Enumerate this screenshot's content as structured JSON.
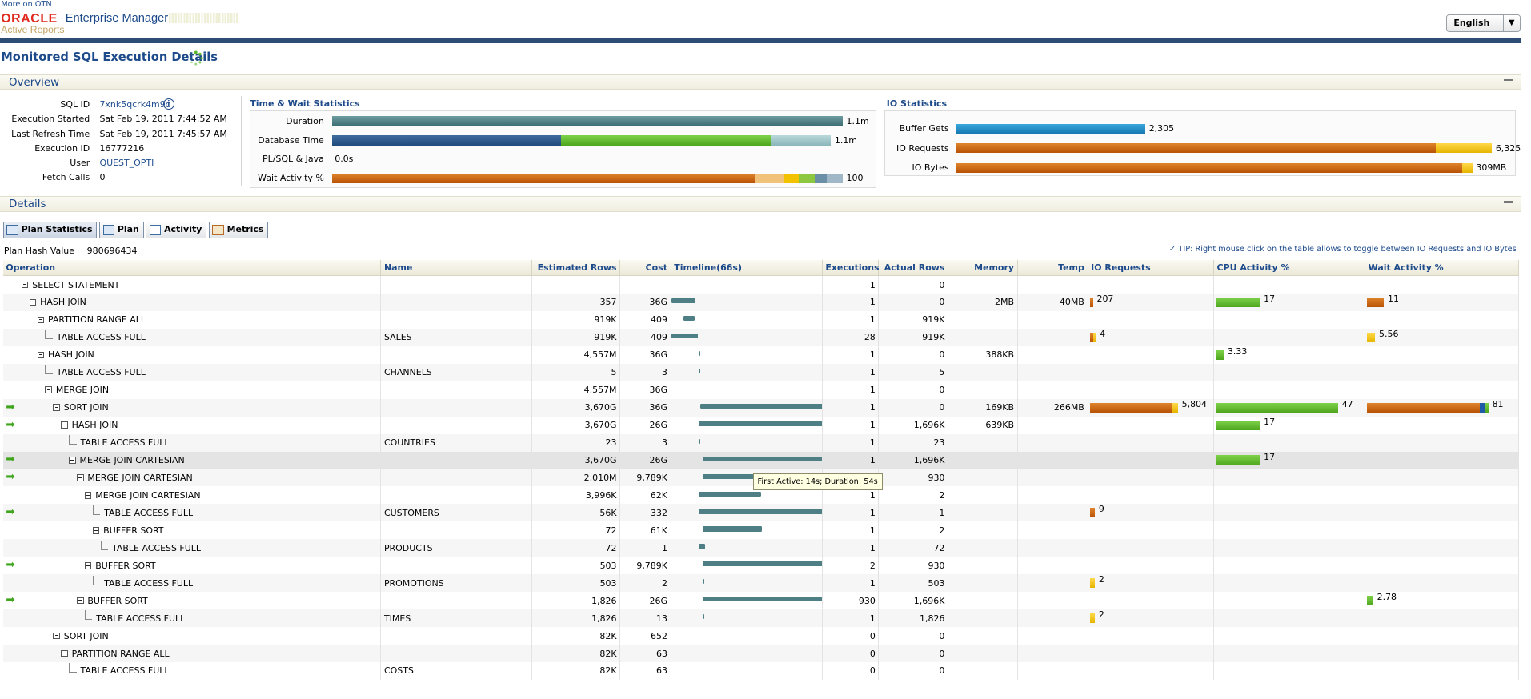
{
  "top": {
    "more_link": "More on OTN"
  },
  "brand": {
    "oracle": "ORACLE",
    "product": "Enterprise Manager",
    "subtitle": "Active Reports"
  },
  "language": {
    "selected": "English"
  },
  "page_title": "Monitored SQL Execution Details",
  "sections": {
    "overview": "Overview",
    "details": "Details"
  },
  "overview": {
    "fields": [
      {
        "label": "SQL ID",
        "value": "7xnk5qcrk4m9c"
      },
      {
        "label": "Execution Started",
        "value": "Sat Feb 19, 2011 7:44:52 AM"
      },
      {
        "label": "Last Refresh Time",
        "value": "Sat Feb 19, 2011 7:45:57 AM"
      },
      {
        "label": "Execution ID",
        "value": "16777216"
      },
      {
        "label": "User",
        "value": "QUEST_OPTI"
      },
      {
        "label": "Fetch Calls",
        "value": "0"
      }
    ]
  },
  "time_wait": {
    "title": "Time & Wait Statistics",
    "rows": [
      {
        "label": "Duration",
        "value": "1.1m",
        "fraction": 1.0
      },
      {
        "label": "Database Time",
        "value": "1.1m",
        "fraction": 1.0
      },
      {
        "label": "PL/SQL & Java",
        "value": "0.0s",
        "fraction": 0
      },
      {
        "label": "Wait Activity %",
        "value": "100",
        "fraction": 1.0
      }
    ]
  },
  "io_stats": {
    "title": "IO Statistics",
    "rows": [
      {
        "label": "Buffer Gets",
        "value": "2,305",
        "fraction": 0.35
      },
      {
        "label": "IO Requests",
        "value": "6,325",
        "fraction": 1.0
      },
      {
        "label": "IO Bytes",
        "value": "309MB",
        "fraction": 1.0
      }
    ]
  },
  "tabs": [
    {
      "label": "Plan Statistics",
      "icon": "table-icon"
    },
    {
      "label": "Plan",
      "icon": "tree-icon"
    },
    {
      "label": "Activity",
      "icon": "line-chart-icon"
    },
    {
      "label": "Metrics",
      "icon": "metrics-icon"
    }
  ],
  "plan_hash": {
    "label": "Plan Hash Value",
    "value": "980696434"
  },
  "tip": "TIP: Right mouse click on the table allows to toggle between IO Requests and IO Bytes",
  "columns": [
    "Operation",
    "Name",
    "Estimated Rows",
    "Cost",
    "Timeline(66s)",
    "Executions",
    "Actual Rows",
    "Memory",
    "Temp",
    "IO Requests",
    "CPU Activity %",
    "Wait Activity %"
  ],
  "rows": [
    {
      "op": "SELECT STATEMENT",
      "name": "",
      "est": "",
      "cost": "",
      "exec": "1",
      "act": "0",
      "mem": "",
      "temp": "",
      "io": "",
      "cpu": "",
      "wait": ""
    },
    {
      "op": "HASH JOIN",
      "name": "",
      "est": "357",
      "cost": "36G",
      "exec": "1",
      "act": "0",
      "mem": "2MB",
      "temp": "40MB",
      "io": "207",
      "cpu": "17",
      "wait": "11"
    },
    {
      "op": "PARTITION RANGE ALL",
      "name": "",
      "est": "919K",
      "cost": "409",
      "exec": "1",
      "act": "919K",
      "mem": "",
      "temp": "",
      "io": "",
      "cpu": "",
      "wait": ""
    },
    {
      "op": "TABLE ACCESS FULL",
      "name": "SALES",
      "est": "919K",
      "cost": "409",
      "exec": "28",
      "act": "919K",
      "mem": "",
      "temp": "",
      "io": "4",
      "cpu": "",
      "wait": "5.56"
    },
    {
      "op": "HASH JOIN",
      "name": "",
      "est": "4,557M",
      "cost": "36G",
      "exec": "1",
      "act": "0",
      "mem": "388KB",
      "temp": "",
      "io": "",
      "cpu": "3.33",
      "wait": ""
    },
    {
      "op": "TABLE ACCESS FULL",
      "name": "CHANNELS",
      "est": "5",
      "cost": "3",
      "exec": "1",
      "act": "5",
      "mem": "",
      "temp": "",
      "io": "",
      "cpu": "",
      "wait": ""
    },
    {
      "op": "MERGE JOIN",
      "name": "",
      "est": "4,557M",
      "cost": "36G",
      "exec": "1",
      "act": "0",
      "mem": "",
      "temp": "",
      "io": "",
      "cpu": "",
      "wait": ""
    },
    {
      "op": "SORT JOIN",
      "name": "",
      "est": "3,670G",
      "cost": "36G",
      "exec": "1",
      "act": "0",
      "mem": "169KB",
      "temp": "266MB",
      "io": "5,804",
      "cpu": "47",
      "wait": "81"
    },
    {
      "op": "HASH JOIN",
      "name": "",
      "est": "3,670G",
      "cost": "26G",
      "exec": "1",
      "act": "1,696K",
      "mem": "639KB",
      "temp": "",
      "io": "",
      "cpu": "17",
      "wait": ""
    },
    {
      "op": "TABLE ACCESS FULL",
      "name": "COUNTRIES",
      "est": "23",
      "cost": "3",
      "exec": "1",
      "act": "23",
      "mem": "",
      "temp": "",
      "io": "",
      "cpu": "",
      "wait": ""
    },
    {
      "op": "MERGE JOIN CARTESIAN",
      "name": "",
      "est": "3,670G",
      "cost": "26G",
      "exec": "1",
      "act": "1,696K",
      "mem": "",
      "temp": "",
      "io": "",
      "cpu": "17",
      "wait": ""
    },
    {
      "op": "MERGE JOIN CARTESIAN",
      "name": "",
      "est": "2,010M",
      "cost": "9,789K",
      "exec": "",
      "act": "930",
      "mem": "",
      "temp": "",
      "io": "",
      "cpu": "",
      "wait": ""
    },
    {
      "op": "MERGE JOIN CARTESIAN",
      "name": "",
      "est": "3,996K",
      "cost": "62K",
      "exec": "1",
      "act": "2",
      "mem": "",
      "temp": "",
      "io": "",
      "cpu": "",
      "wait": ""
    },
    {
      "op": "TABLE ACCESS FULL",
      "name": "CUSTOMERS",
      "est": "56K",
      "cost": "332",
      "exec": "1",
      "act": "1",
      "mem": "",
      "temp": "",
      "io": "9",
      "cpu": "",
      "wait": ""
    },
    {
      "op": "BUFFER SORT",
      "name": "",
      "est": "72",
      "cost": "61K",
      "exec": "1",
      "act": "2",
      "mem": "",
      "temp": "",
      "io": "",
      "cpu": "",
      "wait": ""
    },
    {
      "op": "TABLE ACCESS FULL",
      "name": "PRODUCTS",
      "est": "72",
      "cost": "1",
      "exec": "1",
      "act": "72",
      "mem": "",
      "temp": "",
      "io": "",
      "cpu": "",
      "wait": ""
    },
    {
      "op": "BUFFER SORT",
      "name": "",
      "est": "503",
      "cost": "9,789K",
      "exec": "2",
      "act": "930",
      "mem": "",
      "temp": "",
      "io": "",
      "cpu": "",
      "wait": ""
    },
    {
      "op": "TABLE ACCESS FULL",
      "name": "PROMOTIONS",
      "est": "503",
      "cost": "2",
      "exec": "1",
      "act": "503",
      "mem": "",
      "temp": "",
      "io": "2",
      "cpu": "",
      "wait": ""
    },
    {
      "op": "BUFFER SORT",
      "name": "",
      "est": "1,826",
      "cost": "26G",
      "exec": "930",
      "act": "1,696K",
      "mem": "",
      "temp": "",
      "io": "",
      "cpu": "",
      "wait": "2.78"
    },
    {
      "op": "TABLE ACCESS FULL",
      "name": "TIMES",
      "est": "1,826",
      "cost": "13",
      "exec": "1",
      "act": "1,826",
      "mem": "",
      "temp": "",
      "io": "2",
      "cpu": "",
      "wait": ""
    },
    {
      "op": "SORT JOIN",
      "name": "",
      "est": "82K",
      "cost": "652",
      "exec": "0",
      "act": "0",
      "mem": "",
      "temp": "",
      "io": "",
      "cpu": "",
      "wait": ""
    },
    {
      "op": "PARTITION RANGE ALL",
      "name": "",
      "est": "82K",
      "cost": "63",
      "exec": "0",
      "act": "0",
      "mem": "",
      "temp": "",
      "io": "",
      "cpu": "",
      "wait": ""
    },
    {
      "op": "TABLE ACCESS FULL",
      "name": "COSTS",
      "est": "82K",
      "cost": "63",
      "exec": "0",
      "act": "0",
      "mem": "",
      "temp": "",
      "io": "",
      "cpu": "",
      "wait": ""
    }
  ],
  "tooltip": "First Active: 14s; Duration: 54s",
  "colors": {
    "accent": "#1d4a8a",
    "teal": "#4e7f84",
    "green": "#5bb82c",
    "orange": "#c55c05",
    "yellow": "#f2c200",
    "blue": "#1e8bc3"
  }
}
